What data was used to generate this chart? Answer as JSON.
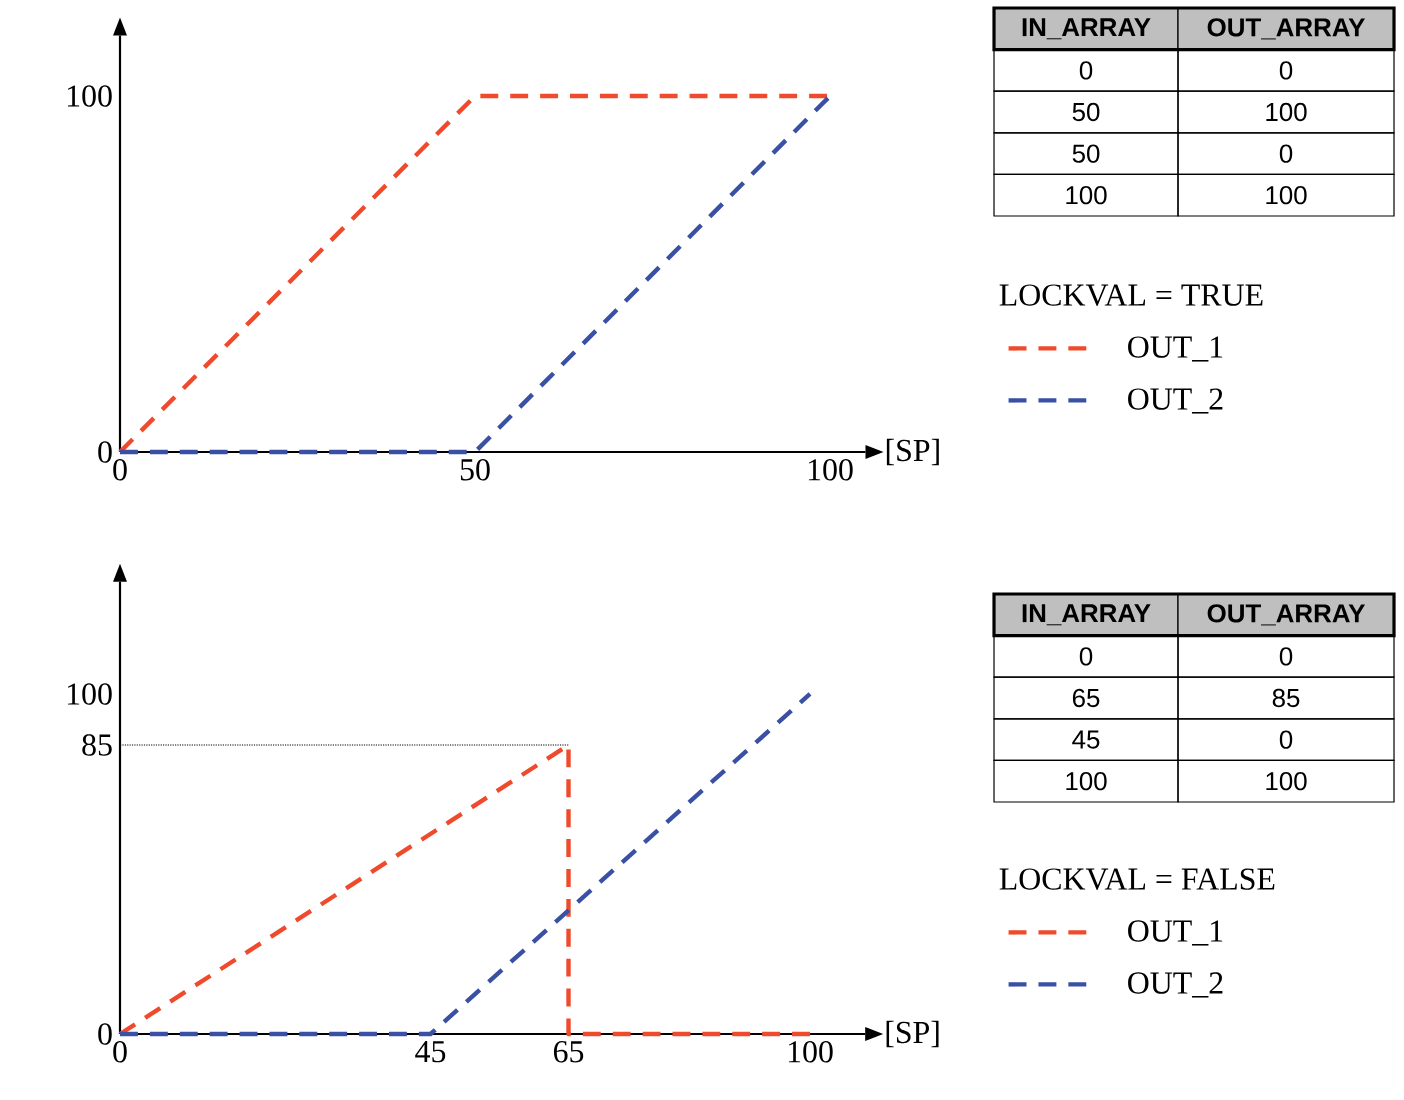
{
  "chart_data": [
    {
      "type": "line",
      "xlabel": "[SP]",
      "legend_title": "LOCKVAL = TRUE",
      "legend": "right",
      "line_style": "dashed",
      "xlim": [
        0,
        105
      ],
      "ylim": [
        0,
        117
      ],
      "xticks": [
        0,
        50,
        100
      ],
      "yticks": [
        0,
        100
      ],
      "series": [
        {
          "name": "OUT_1",
          "color": "#f04a2c",
          "x": [
            0,
            50,
            100
          ],
          "values": [
            0,
            100,
            100
          ]
        },
        {
          "name": "OUT_2",
          "color": "#3a50a4",
          "x": [
            0,
            50,
            100
          ],
          "values": [
            0,
            0,
            100
          ]
        }
      ]
    },
    {
      "type": "other",
      "categories": [
        "IN_ARRAY",
        "OUT_ARRAY"
      ],
      "cell_labels": [
        [
          "0",
          "0"
        ],
        [
          "50",
          "100"
        ],
        [
          "50",
          "0"
        ],
        [
          "100",
          "100"
        ]
      ]
    },
    {
      "type": "line",
      "xlabel": "[SP]",
      "legend_title": "LOCKVAL = FALSE",
      "legend": "right",
      "line_style": "dashed",
      "xlim": [
        0,
        108
      ],
      "ylim": [
        0,
        133
      ],
      "xticks": [
        0,
        45,
        65,
        100
      ],
      "yticks": [
        0,
        85,
        100
      ],
      "series": [
        {
          "color": "#000000",
          "line_style": "dotted",
          "x": [
            0,
            65
          ],
          "values": [
            85,
            85
          ]
        },
        {
          "name": "OUT_1",
          "color": "#f04a2c",
          "x": [
            0,
            65,
            65,
            100
          ],
          "values": [
            0,
            85,
            0,
            0
          ]
        },
        {
          "name": "OUT_2",
          "color": "#3a50a4",
          "x": [
            0,
            45,
            100
          ],
          "values": [
            0,
            0,
            100
          ]
        }
      ]
    },
    {
      "type": "other",
      "categories": [
        "IN_ARRAY",
        "OUT_ARRAY"
      ],
      "cell_labels": [
        [
          "0",
          "0"
        ],
        [
          "65",
          "85"
        ],
        [
          "45",
          "0"
        ],
        [
          "100",
          "100"
        ]
      ]
    }
  ]
}
